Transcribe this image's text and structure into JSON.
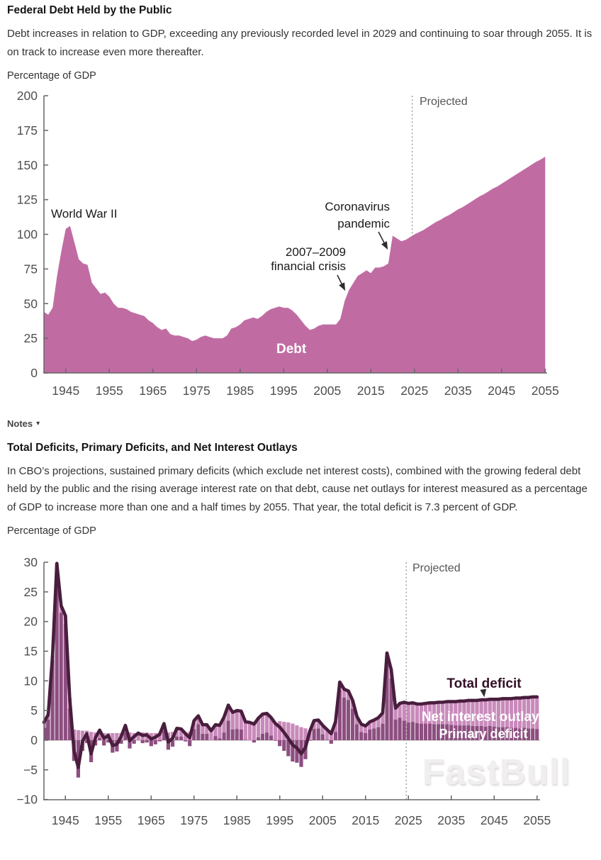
{
  "section1": {
    "title": "Federal Debt Held by the Public",
    "description": "Debt increases in relation to GDP, exceeding any previously recorded level in 2029 and continuing to soar through 2055. It is on track to increase even more thereafter.",
    "axis_unit": "Percentage of GDP"
  },
  "notes": {
    "label": "Notes",
    "caret": "▾"
  },
  "section2": {
    "title": "Total Deficits, Primary Deficits, and Net Interest Outlays",
    "description": "In CBO’s projections, sustained primary deficits (which exclude net interest costs), combined with the growing federal debt held by the public and the rising average interest rate on that debt, cause net outlays for interest measured as a percentage of GDP to increase more than one and a half times by 2055. That year, the total deficit is 7.3 percent of GDP.",
    "axis_unit": "Percentage of GDP"
  },
  "watermark": "FastBull",
  "colors": {
    "debt_area": "#c06ca3",
    "interest_bar": "#c98abb",
    "primary_bar": "#8d4e80",
    "total_line": "#491e3d",
    "axis": "#666666",
    "zero_line": "#999999",
    "dashed": "#8a8a8a",
    "tick_label": "#4f4f4f",
    "annotation": "#1a1a1a",
    "projected_label": "#555555",
    "total_label": "#331027",
    "band_label": "#ffffff"
  },
  "chart_data": [
    {
      "type": "area",
      "title": "Federal Debt Held by the Public",
      "ylabel": "Percentage of GDP",
      "xlabel": "",
      "ylim": [
        0,
        200
      ],
      "yticks": [
        0,
        25,
        50,
        75,
        100,
        125,
        150,
        175,
        200
      ],
      "xticks": [
        1945,
        1955,
        1965,
        1975,
        1985,
        1995,
        2005,
        2015,
        2025,
        2035,
        2045,
        2055
      ],
      "x_start": 1940,
      "x_end": 2055,
      "projection_start_year": 2025,
      "grid": false,
      "labels": {
        "projected": "Projected",
        "series": "Debt",
        "wwii": "World War II",
        "crisis1": "2007–2009",
        "crisis2": "financial crisis",
        "covid1": "Coronavirus",
        "covid2": "pandemic"
      },
      "values": [
        44,
        42,
        47,
        70,
        88,
        104,
        106,
        94,
        82,
        79,
        78,
        65,
        61,
        57,
        58,
        55,
        50,
        47,
        47,
        46,
        44,
        43,
        42,
        41,
        38,
        36,
        33,
        31,
        32,
        28,
        27,
        27,
        26,
        25,
        23,
        24,
        26,
        27,
        26,
        25,
        25,
        25,
        27,
        32,
        33,
        35,
        38,
        39,
        40,
        39,
        41,
        44,
        46,
        47,
        48,
        47,
        47,
        45,
        42,
        38,
        34,
        31,
        32,
        34,
        35,
        35,
        35,
        35,
        39,
        52,
        60,
        65,
        70,
        72,
        74,
        72,
        76,
        76,
        77,
        79,
        99,
        97,
        95,
        96,
        98,
        100,
        101.5,
        103,
        105,
        107,
        109,
        110.5,
        112.5,
        114,
        116,
        118,
        119.5,
        121.5,
        123.5,
        125.5,
        127.5,
        129,
        131,
        133,
        134.5,
        136.5,
        138.5,
        140.5,
        142.5,
        144.5,
        146.5,
        148.5,
        150.5,
        152.5,
        154,
        156
      ]
    },
    {
      "type": "bar+line",
      "title": "Total Deficits, Primary Deficits, and Net Interest Outlays",
      "ylabel": "Percentage of GDP",
      "xlabel": "",
      "ylim": [
        -10,
        30
      ],
      "yticks": [
        -10,
        -5,
        0,
        5,
        10,
        15,
        20,
        25,
        30
      ],
      "xticks": [
        1945,
        1955,
        1965,
        1975,
        1985,
        1995,
        2005,
        2015,
        2025,
        2035,
        2045,
        2055
      ],
      "x_start": 1940,
      "x_end": 2055,
      "projection_start_year": 2025,
      "grid": false,
      "labels": {
        "projected": "Projected",
        "total": "Total deficit",
        "interest": "Net interest outlays",
        "primary": "Primary deficit"
      },
      "series": [
        {
          "name": "Total deficit",
          "type": "line",
          "values": [
            3.0,
            4.3,
            14.2,
            29.8,
            22.7,
            21.0,
            7.2,
            -1.7,
            -4.6,
            -0.2,
            1.1,
            -2.3,
            0.4,
            1.7,
            0.3,
            0.8,
            -0.9,
            -0.7,
            0.6,
            2.5,
            -0.1,
            0.6,
            1.2,
            0.8,
            0.9,
            0.2,
            0.5,
            1.0,
            2.8,
            -0.3,
            0.3,
            2.0,
            1.9,
            1.1,
            0.4,
            3.3,
            4.1,
            2.6,
            2.6,
            1.6,
            2.6,
            2.5,
            3.9,
            5.9,
            4.7,
            5.0,
            4.9,
            3.1,
            3.0,
            2.7,
            3.7,
            4.4,
            4.5,
            3.8,
            2.8,
            2.2,
            1.3,
            0.3,
            -0.8,
            -1.3,
            -2.3,
            -1.2,
            1.5,
            3.3,
            3.4,
            2.5,
            1.8,
            1.1,
            3.1,
            9.8,
            8.6,
            8.3,
            6.7,
            4.0,
            2.7,
            2.4,
            3.1,
            3.4,
            3.8,
            4.6,
            14.7,
            11.9,
            5.4,
            6.2,
            6.4,
            6.2,
            6.3,
            6.1,
            6.1,
            6.2,
            6.3,
            6.3,
            6.4,
            6.4,
            6.5,
            6.5,
            6.5,
            6.6,
            6.6,
            6.7,
            6.7,
            6.7,
            6.8,
            6.8,
            6.9,
            6.9,
            6.9,
            7.0,
            7.0,
            7.0,
            7.1,
            7.1,
            7.2,
            7.2,
            7.3,
            7.3
          ]
        },
        {
          "name": "Net interest outlays",
          "type": "bar",
          "values": [
            0.9,
            0.8,
            0.7,
            0.9,
            1.2,
            1.4,
            1.8,
            1.8,
            1.7,
            1.6,
            1.6,
            1.4,
            1.3,
            1.3,
            1.2,
            1.2,
            1.2,
            1.2,
            1.2,
            1.2,
            1.3,
            1.2,
            1.2,
            1.3,
            1.3,
            1.2,
            1.2,
            1.2,
            1.2,
            1.3,
            1.4,
            1.4,
            1.3,
            1.3,
            1.4,
            1.4,
            1.4,
            1.5,
            1.5,
            1.6,
            1.9,
            2.2,
            2.6,
            2.6,
            2.9,
            3.1,
            3.1,
            3.0,
            3.0,
            3.1,
            3.2,
            3.3,
            3.2,
            3.0,
            2.9,
            3.2,
            3.1,
            3.0,
            2.8,
            2.5,
            2.2,
            2.0,
            1.6,
            1.4,
            1.4,
            1.5,
            1.7,
            1.7,
            1.7,
            1.3,
            1.4,
            1.5,
            1.4,
            1.3,
            1.3,
            1.2,
            1.3,
            1.4,
            1.6,
            1.8,
            1.6,
            1.5,
            1.9,
            2.4,
            3.1,
            3.2,
            3.2,
            3.2,
            3.3,
            3.4,
            3.5,
            3.6,
            3.7,
            3.7,
            3.8,
            3.9,
            4.0,
            4.1,
            4.1,
            4.2,
            4.3,
            4.3,
            4.4,
            4.5,
            4.5,
            4.6,
            4.7,
            4.8,
            4.8,
            4.9,
            5.0,
            5.1,
            5.1,
            5.2,
            5.3,
            5.4
          ]
        },
        {
          "name": "Primary deficit",
          "type": "bar",
          "values": [
            2.1,
            3.5,
            13.5,
            28.9,
            21.5,
            19.6,
            5.4,
            -3.5,
            -6.3,
            -1.8,
            -0.5,
            -3.7,
            -0.9,
            0.4,
            -0.9,
            -0.4,
            -2.1,
            -1.9,
            -0.6,
            1.3,
            -1.4,
            -0.6,
            0.0,
            -0.5,
            -0.4,
            -1.0,
            -0.7,
            -0.2,
            1.6,
            -1.6,
            -1.1,
            0.6,
            0.6,
            -0.2,
            -1.0,
            1.9,
            2.7,
            1.1,
            1.1,
            0.0,
            0.7,
            0.3,
            1.3,
            3.3,
            1.8,
            1.9,
            1.8,
            0.1,
            0.0,
            -0.4,
            0.5,
            1.1,
            1.3,
            0.8,
            -0.1,
            -1.0,
            -1.8,
            -2.7,
            -3.6,
            -3.8,
            -4.5,
            -3.2,
            -0.1,
            1.9,
            2.0,
            1.0,
            0.1,
            -0.6,
            1.4,
            8.5,
            7.2,
            6.8,
            5.3,
            2.7,
            1.4,
            1.2,
            1.8,
            2.0,
            2.2,
            2.8,
            13.1,
            10.4,
            3.5,
            3.8,
            3.3,
            3.0,
            3.1,
            2.9,
            2.8,
            2.8,
            2.8,
            2.7,
            2.7,
            2.7,
            2.7,
            2.6,
            2.5,
            2.5,
            2.5,
            2.5,
            2.4,
            2.4,
            2.4,
            2.3,
            2.4,
            2.3,
            2.2,
            2.2,
            2.2,
            2.1,
            2.1,
            2.0,
            2.1,
            2.0,
            2.0,
            1.9
          ]
        }
      ]
    }
  ]
}
